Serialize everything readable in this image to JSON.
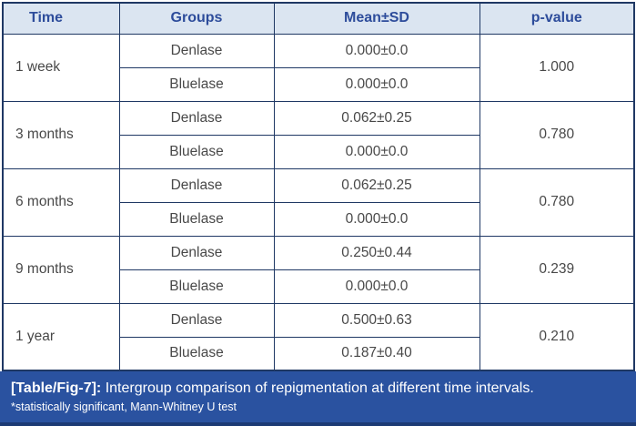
{
  "table": {
    "columns": [
      {
        "label": "Time"
      },
      {
        "label": "Groups"
      },
      {
        "label": "Mean±SD"
      },
      {
        "label": "p-value"
      }
    ],
    "rows": [
      {
        "time": "1 week",
        "groups": [
          {
            "group": "Denlase",
            "mean": "0.000±0.0"
          },
          {
            "group": "Bluelase",
            "mean": "0.000±0.0"
          }
        ],
        "p_value": "1.000"
      },
      {
        "time": "3 months",
        "groups": [
          {
            "group": "Denlase",
            "mean": "0.062±0.25"
          },
          {
            "group": "Bluelase",
            "mean": "0.000±0.0"
          }
        ],
        "p_value": "0.780"
      },
      {
        "time": "6 months",
        "groups": [
          {
            "group": "Denlase",
            "mean": "0.062±0.25"
          },
          {
            "group": "Bluelase",
            "mean": "0.000±0.0"
          }
        ],
        "p_value": "0.780"
      },
      {
        "time": "9 months",
        "groups": [
          {
            "group": "Denlase",
            "mean": "0.250±0.44"
          },
          {
            "group": "Bluelase",
            "mean": "0.000±0.0"
          }
        ],
        "p_value": "0.239"
      },
      {
        "time": "1 year",
        "groups": [
          {
            "group": "Denlase",
            "mean": "0.500±0.63"
          },
          {
            "group": "Bluelase",
            "mean": "0.187±0.40"
          }
        ],
        "p_value": "0.210"
      }
    ]
  },
  "caption": {
    "label": "[Table/Fig-7]:",
    "text": " Intergroup comparison of repigmentation at different time intervals."
  },
  "footnote": "*statistically significant, Mann-Whitney U test",
  "colors": {
    "border": "#1f3864",
    "header_bg": "#dbe5f1",
    "header_text": "#2d4c9b",
    "body_text": "#484848",
    "caption_bg": "#2a52a0",
    "caption_edge": "#1c3a74",
    "caption_text": "#ffffff"
  }
}
